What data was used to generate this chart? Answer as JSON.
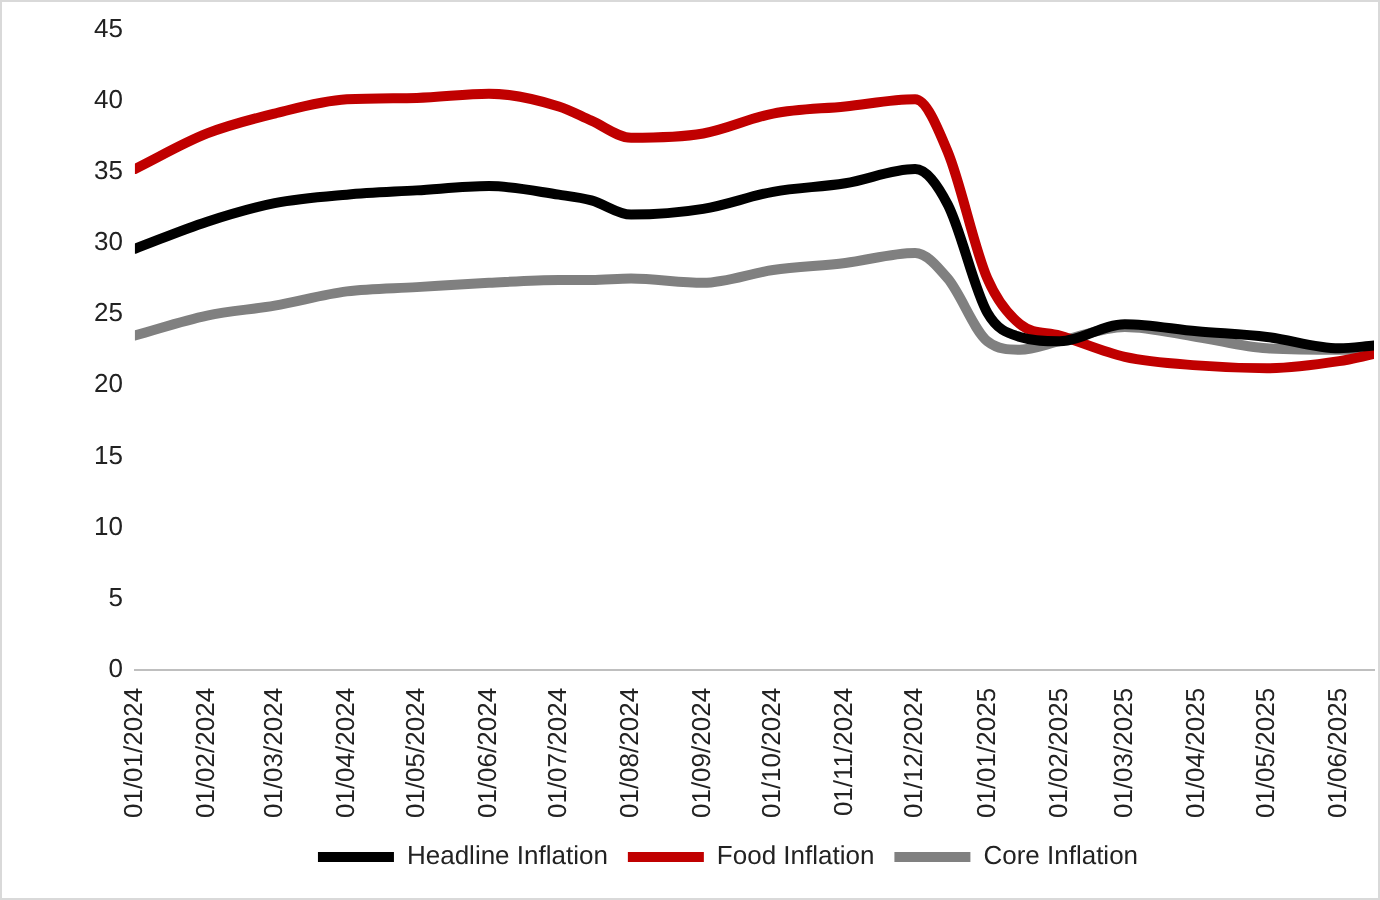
{
  "chart_data": {
    "type": "line",
    "x": [
      "2024-01-01",
      "2024-02-01",
      "2024-03-01",
      "2024-04-01",
      "2024-05-01",
      "2024-06-01",
      "2024-07-01",
      "2024-07-15",
      "2024-08-01",
      "2024-09-01",
      "2024-10-01",
      "2024-11-01",
      "2024-12-01",
      "2024-12-15",
      "2025-01-01",
      "2025-01-15",
      "2025-02-01",
      "2025-03-01",
      "2025-04-01",
      "2025-05-01",
      "2025-06-01",
      "2025-06-16"
    ],
    "series": [
      {
        "name": "Headline Inflation",
        "color": "#000000",
        "values": [
          29.6,
          31.5,
          32.8,
          33.4,
          33.7,
          34.0,
          33.4,
          33.0,
          32.0,
          32.4,
          33.6,
          34.2,
          35.2,
          32.7,
          25.1,
          23.4,
          23.1,
          24.3,
          23.8,
          23.4,
          22.6,
          22.8
        ]
      },
      {
        "name": "Food Inflation",
        "color": "#c00000",
        "values": [
          35.2,
          37.7,
          39.1,
          40.1,
          40.2,
          40.5,
          39.6,
          38.6,
          37.4,
          37.7,
          39.1,
          39.6,
          40.1,
          36.4,
          27.5,
          24.3,
          23.5,
          22.0,
          21.4,
          21.2,
          21.7,
          22.2
        ]
      },
      {
        "name": "Core Inflation",
        "color": "#808080",
        "values": [
          23.5,
          24.9,
          25.6,
          26.6,
          26.9,
          27.2,
          27.4,
          27.4,
          27.5,
          27.2,
          28.1,
          28.6,
          29.3,
          27.5,
          23.1,
          22.5,
          23.1,
          24.1,
          23.4,
          22.6,
          22.5,
          22.6
        ]
      }
    ],
    "xlim": [
      "2024-01-01",
      "2025-06-16"
    ],
    "xticks": [
      {
        "value": "2024-01-01",
        "label": "01/01/2024"
      },
      {
        "value": "2024-02-01",
        "label": "01/02/2024"
      },
      {
        "value": "2024-03-01",
        "label": "01/03/2024"
      },
      {
        "value": "2024-04-01",
        "label": "01/04/2024"
      },
      {
        "value": "2024-05-01",
        "label": "01/05/2024"
      },
      {
        "value": "2024-06-01",
        "label": "01/06/2024"
      },
      {
        "value": "2024-07-01",
        "label": "01/07/2024"
      },
      {
        "value": "2024-08-01",
        "label": "01/08/2024"
      },
      {
        "value": "2024-09-01",
        "label": "01/09/2024"
      },
      {
        "value": "2024-10-01",
        "label": "01/10/2024"
      },
      {
        "value": "2024-11-01",
        "label": "01/11/2024"
      },
      {
        "value": "2024-12-01",
        "label": "01/12/2024"
      },
      {
        "value": "2025-01-01",
        "label": "01/01/2025"
      },
      {
        "value": "2025-02-01",
        "label": "01/02/2025"
      },
      {
        "value": "2025-03-01",
        "label": "01/03/2025"
      },
      {
        "value": "2025-04-01",
        "label": "01/04/2025"
      },
      {
        "value": "2025-05-01",
        "label": "01/05/2025"
      },
      {
        "value": "2025-06-01",
        "label": "01/06/2025"
      }
    ],
    "ylim": [
      0,
      45
    ],
    "yticks": [
      0,
      5,
      10,
      15,
      20,
      25,
      30,
      35,
      40,
      45
    ],
    "grid": false,
    "legend": "bottom",
    "marker": "none",
    "line_style": "solid"
  }
}
